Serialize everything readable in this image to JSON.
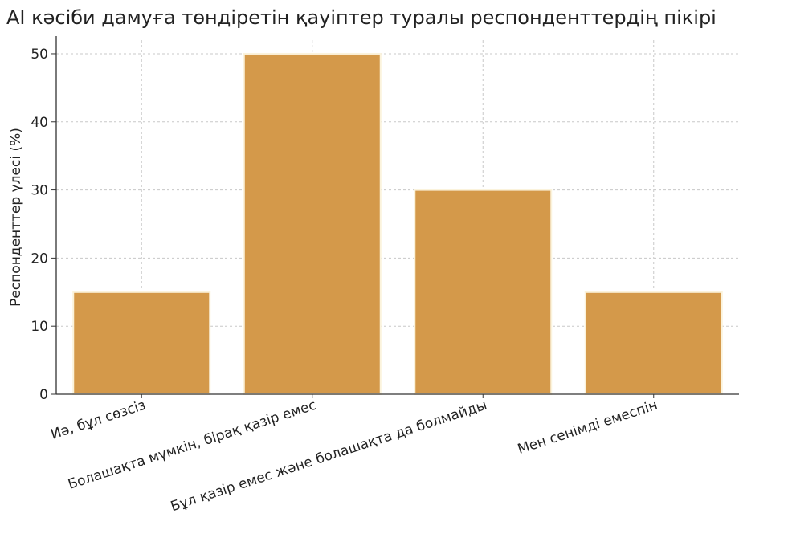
{
  "chart_data": {
    "type": "bar",
    "title": "AI кәсіби дамуға төндіретін қауіптер туралы респонденттердің пікірі",
    "xlabel": "",
    "ylabel": "Респонденттер үлесі (%)",
    "categories": [
      "Иә, бұл сөзсіз",
      "Болашақта мүмкін, бірақ қазір емес",
      "Бұл қазір емес және болашақта да болмайды",
      "Мен сенімді емеспін"
    ],
    "values": [
      15,
      50,
      30,
      15
    ],
    "ylim": [
      0,
      52
    ],
    "yticks": [
      0,
      10,
      20,
      30,
      40,
      50
    ],
    "grid": true,
    "bar_color": "#D4994A",
    "bar_edge_color": "#FBF3DC"
  }
}
